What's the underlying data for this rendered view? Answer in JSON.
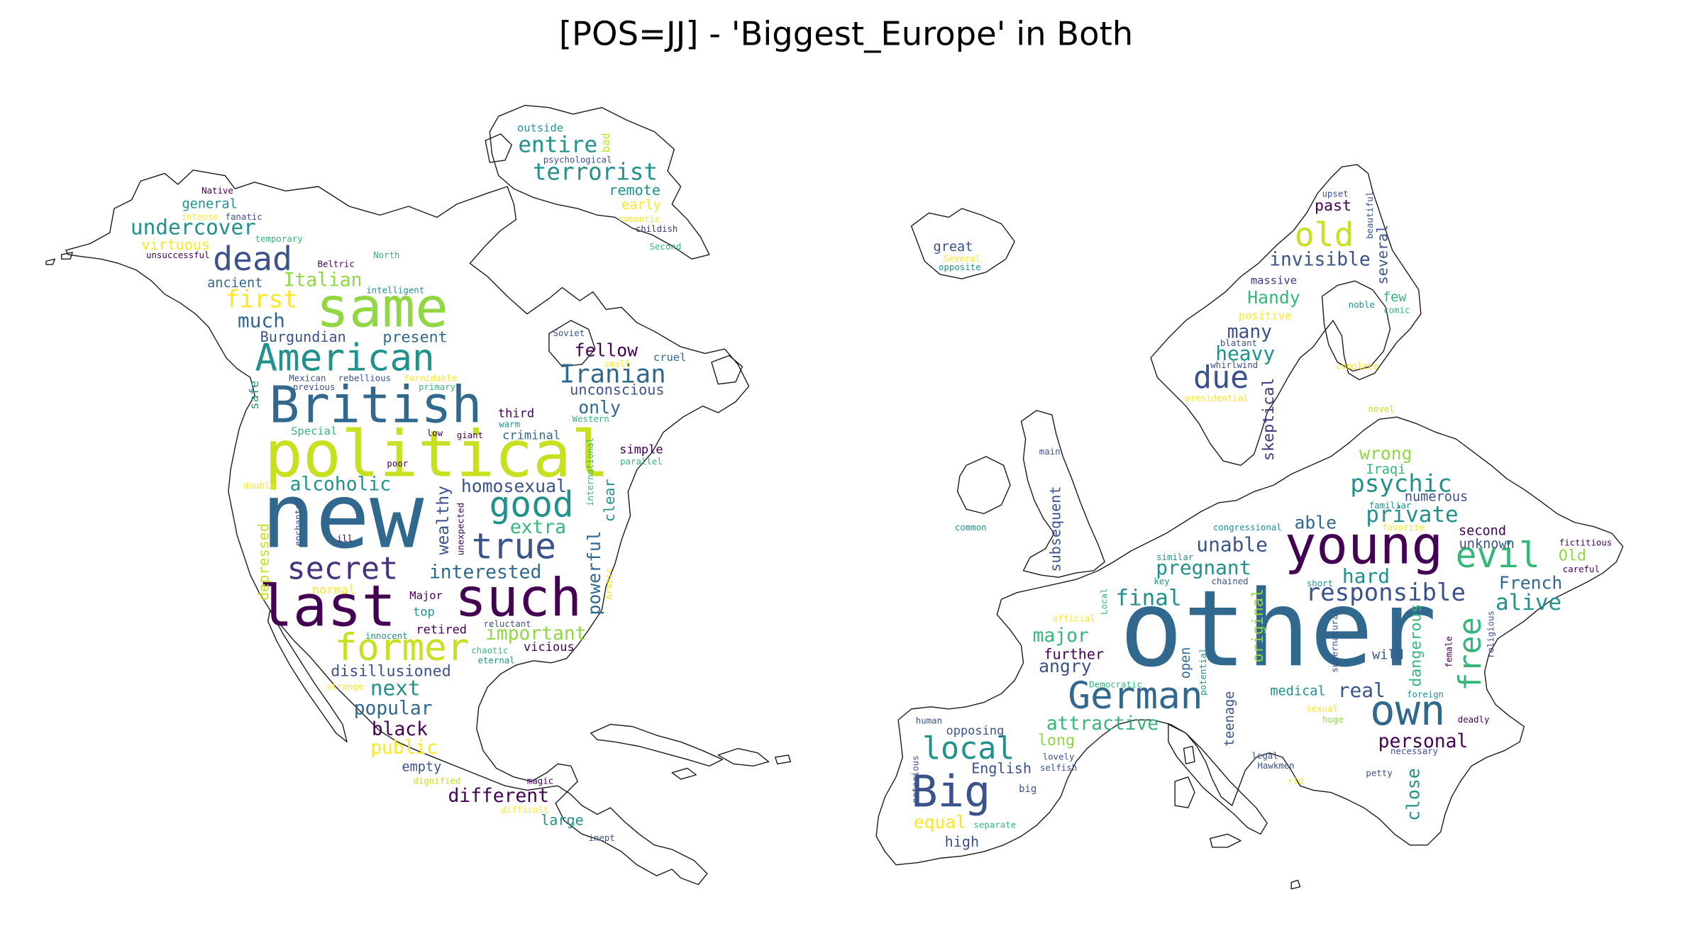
{
  "title": "[POS=JJ] - 'Biggest_Europe' in Both",
  "palette": {
    "dark_purple": "#440154",
    "indigo": "#3b528b",
    "blue": "#31688e",
    "teal": "#21918c",
    "green": "#35b779",
    "light_green": "#90d743",
    "yellow": "#c7e020",
    "bright_yellow": "#fde725"
  },
  "clouds": [
    {
      "name": "north-america",
      "words": [
        {
          "text": "new",
          "color": "#31688e"
        },
        {
          "text": "political",
          "color": "#c7e020"
        },
        {
          "text": "British",
          "color": "#31688e"
        },
        {
          "text": "same",
          "color": "#90d743"
        },
        {
          "text": "last",
          "color": "#440154"
        },
        {
          "text": "such",
          "color": "#440154"
        },
        {
          "text": "American",
          "color": "#21918c"
        },
        {
          "text": "former",
          "color": "#c7e020"
        },
        {
          "text": "dead",
          "color": "#3b528b"
        },
        {
          "text": "good",
          "color": "#21918c"
        },
        {
          "text": "true",
          "color": "#3b528b"
        },
        {
          "text": "secret",
          "color": "#46327e"
        },
        {
          "text": "undercover",
          "color": "#21918c"
        },
        {
          "text": "terrorist",
          "color": "#21918c"
        },
        {
          "text": "entire",
          "color": "#21918c"
        },
        {
          "text": "Iranian",
          "color": "#31688e"
        },
        {
          "text": "first",
          "color": "#fde725"
        },
        {
          "text": "Italian",
          "color": "#90d743"
        },
        {
          "text": "much",
          "color": "#31688e"
        },
        {
          "text": "interested",
          "color": "#31688e"
        },
        {
          "text": "homosexual",
          "color": "#3b528b"
        },
        {
          "text": "alcoholic",
          "color": "#21918c"
        },
        {
          "text": "extra",
          "color": "#35b779"
        },
        {
          "text": "wealthy",
          "color": "#3b528b"
        },
        {
          "text": "powerful",
          "color": "#31688e"
        },
        {
          "text": "important",
          "color": "#90d743"
        },
        {
          "text": "next",
          "color": "#21918c"
        },
        {
          "text": "popular",
          "color": "#31688e"
        },
        {
          "text": "black",
          "color": "#440154"
        },
        {
          "text": "public",
          "color": "#fde725"
        },
        {
          "text": "different",
          "color": "#440154"
        },
        {
          "text": "disillusioned",
          "color": "#3b528b"
        },
        {
          "text": "fellow",
          "color": "#440154"
        },
        {
          "text": "only",
          "color": "#31688e"
        },
        {
          "text": "unconscious",
          "color": "#3b528b"
        },
        {
          "text": "present",
          "color": "#31688e"
        },
        {
          "text": "Burgundian",
          "color": "#3b528b"
        },
        {
          "text": "general",
          "color": "#21918c"
        },
        {
          "text": "ancient",
          "color": "#31688e"
        },
        {
          "text": "remote",
          "color": "#21918c"
        },
        {
          "text": "early",
          "color": "#fde725"
        },
        {
          "text": "outside",
          "color": "#21918c"
        },
        {
          "text": "bad",
          "color": "#c7e020"
        },
        {
          "text": "psychological",
          "color": "#3b528b"
        },
        {
          "text": "romantic",
          "color": "#fde725"
        },
        {
          "text": "childish",
          "color": "#46327e"
        },
        {
          "text": "Second",
          "color": "#35b779"
        },
        {
          "text": "Native",
          "color": "#440154"
        },
        {
          "text": "intense",
          "color": "#fde725"
        },
        {
          "text": "fanatic",
          "color": "#3b528b"
        },
        {
          "text": "virtuous",
          "color": "#fde725"
        },
        {
          "text": "unsuccessful",
          "color": "#440154"
        },
        {
          "text": "temporary",
          "color": "#35b779"
        },
        {
          "text": "North",
          "color": "#35b779"
        },
        {
          "text": "Beltric",
          "color": "#440154"
        },
        {
          "text": "intelligent",
          "color": "#21918c"
        },
        {
          "text": "Soviet",
          "color": "#3b528b"
        },
        {
          "text": "cruel",
          "color": "#31688e"
        },
        {
          "text": "small",
          "color": "#fde725"
        },
        {
          "text": "Western",
          "color": "#35b779"
        },
        {
          "text": "safe",
          "color": "#21918c"
        },
        {
          "text": "Mexican",
          "color": "#3b528b"
        },
        {
          "text": "rebellious",
          "color": "#3b528b"
        },
        {
          "text": "formidable",
          "color": "#fde725"
        },
        {
          "text": "previous",
          "color": "#3b528b"
        },
        {
          "text": "primary",
          "color": "#35b779"
        },
        {
          "text": "third",
          "color": "#440154"
        },
        {
          "text": "warm",
          "color": "#21918c"
        },
        {
          "text": "Special",
          "color": "#35b779"
        },
        {
          "text": "low",
          "color": "#440154"
        },
        {
          "text": "giant",
          "color": "#440154"
        },
        {
          "text": "criminal",
          "color": "#31688e"
        },
        {
          "text": "international",
          "color": "#35b779"
        },
        {
          "text": "simple",
          "color": "#440154"
        },
        {
          "text": "parallel",
          "color": "#35b779"
        },
        {
          "text": "poor",
          "color": "#440154"
        },
        {
          "text": "clear",
          "color": "#21918c"
        },
        {
          "text": "double",
          "color": "#fde725"
        },
        {
          "text": "enchanted",
          "color": "#3b528b"
        },
        {
          "text": "depressed",
          "color": "#c7e020"
        },
        {
          "text": "ill",
          "color": "#440154"
        },
        {
          "text": "unexpected",
          "color": "#440154"
        },
        {
          "text": "Arabic",
          "color": "#fde725"
        },
        {
          "text": "normal",
          "color": "#fde725"
        },
        {
          "text": "Major",
          "color": "#440154"
        },
        {
          "text": "top",
          "color": "#21918c"
        },
        {
          "text": "retired",
          "color": "#440154"
        },
        {
          "text": "innocent",
          "color": "#21918c"
        },
        {
          "text": "reluctant",
          "color": "#3b528b"
        },
        {
          "text": "chaotic",
          "color": "#35b779"
        },
        {
          "text": "eternal",
          "color": "#21918c"
        },
        {
          "text": "vicious",
          "color": "#440154"
        },
        {
          "text": "strange",
          "color": "#fde725"
        },
        {
          "text": "empty",
          "color": "#3b528b"
        },
        {
          "text": "dignified",
          "color": "#c7e020"
        },
        {
          "text": "magic",
          "color": "#440154"
        },
        {
          "text": "difficult",
          "color": "#fde725"
        },
        {
          "text": "large",
          "color": "#21918c"
        },
        {
          "text": "inept",
          "color": "#3b528b"
        }
      ]
    },
    {
      "name": "europe",
      "words": [
        {
          "text": "other",
          "color": "#31688e"
        },
        {
          "text": "young",
          "color": "#440154"
        },
        {
          "text": "German",
          "color": "#31688e"
        },
        {
          "text": "own",
          "color": "#31688e"
        },
        {
          "text": "Big",
          "color": "#3b528b"
        },
        {
          "text": "local",
          "color": "#21918c"
        },
        {
          "text": "evil",
          "color": "#35b779"
        },
        {
          "text": "old",
          "color": "#c7e020"
        },
        {
          "text": "due",
          "color": "#3b528b"
        },
        {
          "text": "free",
          "color": "#35b779"
        },
        {
          "text": "responsible",
          "color": "#3b528b"
        },
        {
          "text": "psychic",
          "color": "#21918c"
        },
        {
          "text": "private",
          "color": "#21918c"
        },
        {
          "text": "pregnant",
          "color": "#21918c"
        },
        {
          "text": "final",
          "color": "#21918c"
        },
        {
          "text": "unable",
          "color": "#3b528b"
        },
        {
          "text": "able",
          "color": "#31688e"
        },
        {
          "text": "hard",
          "color": "#21918c"
        },
        {
          "text": "alive",
          "color": "#21918c"
        },
        {
          "text": "French",
          "color": "#31688e"
        },
        {
          "text": "major",
          "color": "#35b779"
        },
        {
          "text": "angry",
          "color": "#3b528b"
        },
        {
          "text": "further",
          "color": "#440154"
        },
        {
          "text": "attractive",
          "color": "#35b779"
        },
        {
          "text": "real",
          "color": "#3b528b"
        },
        {
          "text": "personal",
          "color": "#440154"
        },
        {
          "text": "invisible",
          "color": "#3b528b"
        },
        {
          "text": "heavy",
          "color": "#21918c"
        },
        {
          "text": "many",
          "color": "#3b528b"
        },
        {
          "text": "Handy",
          "color": "#35b779"
        },
        {
          "text": "wrong",
          "color": "#90d743"
        },
        {
          "text": "past",
          "color": "#440154"
        },
        {
          "text": "several",
          "color": "#3b528b"
        },
        {
          "text": "few",
          "color": "#35b779"
        },
        {
          "text": "skeptical",
          "color": "#46327e"
        },
        {
          "text": "subsequent",
          "color": "#3b528b"
        },
        {
          "text": "original",
          "color": "#90d743"
        },
        {
          "text": "dangerous",
          "color": "#35b779"
        },
        {
          "text": "close",
          "color": "#21918c"
        },
        {
          "text": "teenage",
          "color": "#3b528b"
        },
        {
          "text": "open",
          "color": "#31688e"
        },
        {
          "text": "equal",
          "color": "#fde725"
        },
        {
          "text": "high",
          "color": "#3b528b"
        },
        {
          "text": "English",
          "color": "#3b528b"
        },
        {
          "text": "long",
          "color": "#90d743"
        },
        {
          "text": "opposing",
          "color": "#3b528b"
        },
        {
          "text": "medical",
          "color": "#21918c"
        },
        {
          "text": "numerous",
          "color": "#3b528b"
        },
        {
          "text": "second",
          "color": "#440154"
        },
        {
          "text": "unknown",
          "color": "#3b528b"
        },
        {
          "text": "Old",
          "color": "#90d743"
        },
        {
          "text": "wild",
          "color": "#3b528b"
        },
        {
          "text": "Iraqi",
          "color": "#35b779"
        },
        {
          "text": "great",
          "color": "#3b528b"
        },
        {
          "text": "Several",
          "color": "#fde725"
        },
        {
          "text": "opposite",
          "color": "#21918c"
        },
        {
          "text": "upset",
          "color": "#3b528b"
        },
        {
          "text": "beautiful",
          "color": "#3b528b"
        },
        {
          "text": "massive",
          "color": "#46327e"
        },
        {
          "text": "positive",
          "color": "#fde725"
        },
        {
          "text": "blatant",
          "color": "#3b528b"
        },
        {
          "text": "whirlwind",
          "color": "#3b528b"
        },
        {
          "text": "presidential",
          "color": "#fde725"
        },
        {
          "text": "noble",
          "color": "#21918c"
        },
        {
          "text": "comic",
          "color": "#35b779"
        },
        {
          "text": "complete",
          "color": "#fde725"
        },
        {
          "text": "novel",
          "color": "#c7e020"
        },
        {
          "text": "familiar",
          "color": "#21918c"
        },
        {
          "text": "favorite",
          "color": "#fde725"
        },
        {
          "text": "fictitious",
          "color": "#440154"
        },
        {
          "text": "careful",
          "color": "#440154"
        },
        {
          "text": "main",
          "color": "#3b528b"
        },
        {
          "text": "common",
          "color": "#21918c"
        },
        {
          "text": "congressional",
          "color": "#21918c"
        },
        {
          "text": "similar",
          "color": "#21918c"
        },
        {
          "text": "key",
          "color": "#21918c"
        },
        {
          "text": "chained",
          "color": "#3b528b"
        },
        {
          "text": "short",
          "color": "#21918c"
        },
        {
          "text": "supernatural",
          "color": "#3b528b"
        },
        {
          "text": "official",
          "color": "#fde725"
        },
        {
          "text": "Local",
          "color": "#35b779"
        },
        {
          "text": "Democratic",
          "color": "#35b779"
        },
        {
          "text": "potential",
          "color": "#21918c"
        },
        {
          "text": "foreign",
          "color": "#21918c"
        },
        {
          "text": "sexual",
          "color": "#fde725"
        },
        {
          "text": "huge",
          "color": "#90d743"
        },
        {
          "text": "deadly",
          "color": "#440154"
        },
        {
          "text": "female",
          "color": "#440154"
        },
        {
          "text": "religious",
          "color": "#3b528b"
        },
        {
          "text": "necessary",
          "color": "#3b528b"
        },
        {
          "text": "human",
          "color": "#3b528b"
        },
        {
          "text": "notorious",
          "color": "#3b528b"
        },
        {
          "text": "lovely",
          "color": "#3b528b"
        },
        {
          "text": "selfish",
          "color": "#3b528b"
        },
        {
          "text": "big",
          "color": "#3b528b"
        },
        {
          "text": "separate",
          "color": "#35b779"
        },
        {
          "text": "legal",
          "color": "#3b528b"
        },
        {
          "text": "Hawkmen",
          "color": "#3b528b"
        },
        {
          "text": "rid",
          "color": "#fde725"
        },
        {
          "text": "petty",
          "color": "#3b528b"
        }
      ]
    }
  ]
}
